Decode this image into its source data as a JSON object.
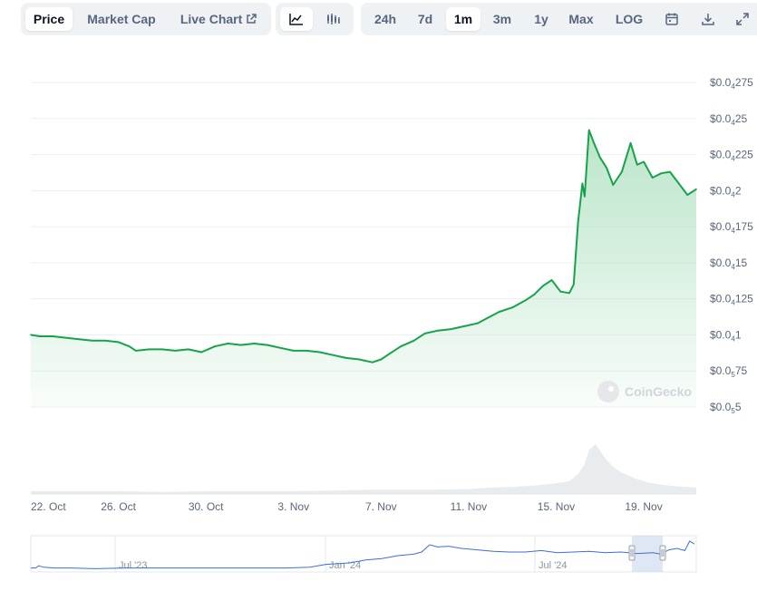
{
  "toolbar": {
    "left_tabs": [
      {
        "label": "Price",
        "active": true
      },
      {
        "label": "Market Cap",
        "active": false
      },
      {
        "label": "Live Chart",
        "active": false,
        "icon": "external-link-icon"
      }
    ],
    "chart_type_icons": [
      "line-chart-icon",
      "candlestick-chart-icon"
    ],
    "ranges": [
      {
        "label": "24h",
        "active": false
      },
      {
        "label": "7d",
        "active": false
      },
      {
        "label": "1m",
        "active": true
      },
      {
        "label": "3m",
        "active": false
      },
      {
        "label": "1y",
        "active": false
      },
      {
        "label": "Max",
        "active": false
      },
      {
        "label": "LOG",
        "active": false
      }
    ],
    "tool_icons": [
      "calendar-icon",
      "download-icon",
      "expand-icon"
    ]
  },
  "watermark": "CoinGecko",
  "colors": {
    "line": "#16a34a",
    "fill_top": "#b7e4c7",
    "grid": "#eceff3",
    "volume": "#e9ecef",
    "navigator_line": "#3b6fd8",
    "navigator_window": "#c9d7ef",
    "active_tab_bg": "#ffffff",
    "segment_bg": "#eff2f5"
  },
  "chart_data": {
    "type": "area",
    "xlabel": "",
    "ylabel": "",
    "x_ticks": [
      "22. Oct",
      "26. Oct",
      "30. Oct",
      "3. Nov",
      "7. Nov",
      "11. Nov",
      "15. Nov",
      "19. Nov"
    ],
    "y_ticks": [
      {
        "prefix": "$0.0",
        "sub": "5",
        "suffix": "5",
        "value": 5e-06
      },
      {
        "prefix": "$0.0",
        "sub": "5",
        "suffix": "75",
        "value": 7.5e-06
      },
      {
        "prefix": "$0.0",
        "sub": "4",
        "suffix": "1",
        "value": 1e-05
      },
      {
        "prefix": "$0.0",
        "sub": "4",
        "suffix": "125",
        "value": 1.25e-05
      },
      {
        "prefix": "$0.0",
        "sub": "4",
        "suffix": "15",
        "value": 1.5e-05
      },
      {
        "prefix": "$0.0",
        "sub": "4",
        "suffix": "175",
        "value": 1.75e-05
      },
      {
        "prefix": "$0.0",
        "sub": "4",
        "suffix": "2",
        "value": 2e-05
      },
      {
        "prefix": "$0.0",
        "sub": "4",
        "suffix": "225",
        "value": 2.25e-05
      },
      {
        "prefix": "$0.0",
        "sub": "4",
        "suffix": "25",
        "value": 2.5e-05
      },
      {
        "prefix": "$0.0",
        "sub": "4",
        "suffix": "275",
        "value": 2.75e-05
      }
    ],
    "ylim": [
      5e-06,
      2.75e-05
    ],
    "xlim_days": [
      0,
      30.4
    ],
    "grid": true,
    "series": [
      {
        "values": [
          [
            0.0,
            1e-05
          ],
          [
            0.4,
            9.9e-06
          ],
          [
            1.0,
            9.9e-06
          ],
          [
            1.6,
            9.8e-06
          ],
          [
            2.2,
            9.7e-06
          ],
          [
            2.8,
            9.6e-06
          ],
          [
            3.4,
            9.6e-06
          ],
          [
            4.0,
            9.5e-06
          ],
          [
            4.5,
            9.2e-06
          ],
          [
            4.8,
            8.9e-06
          ],
          [
            5.4,
            9e-06
          ],
          [
            6.0,
            9e-06
          ],
          [
            6.6,
            8.9e-06
          ],
          [
            7.2,
            9e-06
          ],
          [
            7.8,
            8.8e-06
          ],
          [
            8.4,
            9.2e-06
          ],
          [
            9.0,
            9.4e-06
          ],
          [
            9.6,
            9.3e-06
          ],
          [
            10.2,
            9.4e-06
          ],
          [
            10.8,
            9.3e-06
          ],
          [
            11.4,
            9.1e-06
          ],
          [
            12.0,
            8.9e-06
          ],
          [
            12.6,
            8.9e-06
          ],
          [
            13.2,
            8.8e-06
          ],
          [
            13.8,
            8.6e-06
          ],
          [
            14.4,
            8.4e-06
          ],
          [
            15.0,
            8.3e-06
          ],
          [
            15.6,
            8.1e-06
          ],
          [
            16.0,
            8.3e-06
          ],
          [
            16.4,
            8.7e-06
          ],
          [
            16.9,
            9.2e-06
          ],
          [
            17.5,
            9.6e-06
          ],
          [
            18.0,
            1.01e-05
          ],
          [
            18.6,
            1.03e-05
          ],
          [
            19.2,
            1.04e-05
          ],
          [
            19.8,
            1.06e-05
          ],
          [
            20.4,
            1.08e-05
          ],
          [
            20.9,
            1.12e-05
          ],
          [
            21.4,
            1.16e-05
          ],
          [
            22.0,
            1.19e-05
          ],
          [
            22.6,
            1.24e-05
          ],
          [
            23.0,
            1.28e-05
          ],
          [
            23.4,
            1.34e-05
          ],
          [
            23.8,
            1.38e-05
          ],
          [
            24.2,
            1.3e-05
          ],
          [
            24.6,
            1.29e-05
          ],
          [
            24.8,
            1.35e-05
          ],
          [
            25.0,
            1.78e-05
          ],
          [
            25.2,
            2.05e-05
          ],
          [
            25.3,
            1.96e-05
          ],
          [
            25.5,
            2.42e-05
          ],
          [
            25.7,
            2.34e-05
          ],
          [
            26.0,
            2.23e-05
          ],
          [
            26.3,
            2.16e-05
          ],
          [
            26.6,
            2.04e-05
          ],
          [
            27.0,
            2.13e-05
          ],
          [
            27.4,
            2.33e-05
          ],
          [
            27.7,
            2.18e-05
          ],
          [
            28.0,
            2.2e-05
          ],
          [
            28.4,
            2.09e-05
          ],
          [
            28.8,
            2.12e-05
          ],
          [
            29.2,
            2.13e-05
          ],
          [
            29.6,
            2.05e-05
          ],
          [
            30.0,
            1.97e-05
          ],
          [
            30.4,
            2.01e-05
          ]
        ]
      }
    ],
    "volume": [
      [
        0,
        4
      ],
      [
        2,
        4
      ],
      [
        4,
        4
      ],
      [
        6,
        3
      ],
      [
        8,
        4
      ],
      [
        10,
        4
      ],
      [
        12,
        4
      ],
      [
        14,
        5
      ],
      [
        15.5,
        6
      ],
      [
        17,
        6
      ],
      [
        18.5,
        6
      ],
      [
        20,
        7
      ],
      [
        21,
        9
      ],
      [
        22,
        10
      ],
      [
        23,
        12
      ],
      [
        24,
        15
      ],
      [
        24.6,
        18
      ],
      [
        25,
        28
      ],
      [
        25.3,
        42
      ],
      [
        25.5,
        62
      ],
      [
        25.8,
        70
      ],
      [
        26.2,
        52
      ],
      [
        26.6,
        38
      ],
      [
        27,
        30
      ],
      [
        27.6,
        22
      ],
      [
        28.2,
        16
      ],
      [
        28.8,
        13
      ],
      [
        29.4,
        11
      ],
      [
        30,
        10
      ],
      [
        30.4,
        9
      ]
    ],
    "navigator": {
      "labels": [
        "Jul '23",
        "Jan '24",
        "Jul '24"
      ],
      "values": [
        [
          0,
          3
        ],
        [
          3,
          3
        ],
        [
          5,
          6
        ],
        [
          8,
          4
        ],
        [
          15,
          3
        ],
        [
          25,
          3
        ],
        [
          40,
          2
        ],
        [
          60,
          3
        ],
        [
          80,
          3
        ],
        [
          100,
          3
        ],
        [
          130,
          3
        ],
        [
          160,
          3
        ],
        [
          175,
          4
        ],
        [
          185,
          8
        ],
        [
          200,
          10
        ],
        [
          210,
          14
        ],
        [
          220,
          16
        ],
        [
          230,
          20
        ],
        [
          240,
          22
        ],
        [
          245,
          25
        ],
        [
          250,
          35
        ],
        [
          255,
          32
        ],
        [
          262,
          33
        ],
        [
          270,
          30
        ],
        [
          280,
          28
        ],
        [
          290,
          26
        ],
        [
          300,
          25
        ],
        [
          310,
          25
        ],
        [
          320,
          27
        ],
        [
          330,
          24
        ],
        [
          340,
          25
        ],
        [
          350,
          26
        ],
        [
          360,
          24
        ],
        [
          370,
          25
        ],
        [
          380,
          23
        ],
        [
          390,
          24
        ],
        [
          395,
          22
        ],
        [
          400,
          28
        ],
        [
          405,
          30
        ],
        [
          410,
          27
        ],
        [
          413,
          40
        ],
        [
          416,
          36
        ]
      ]
    }
  }
}
